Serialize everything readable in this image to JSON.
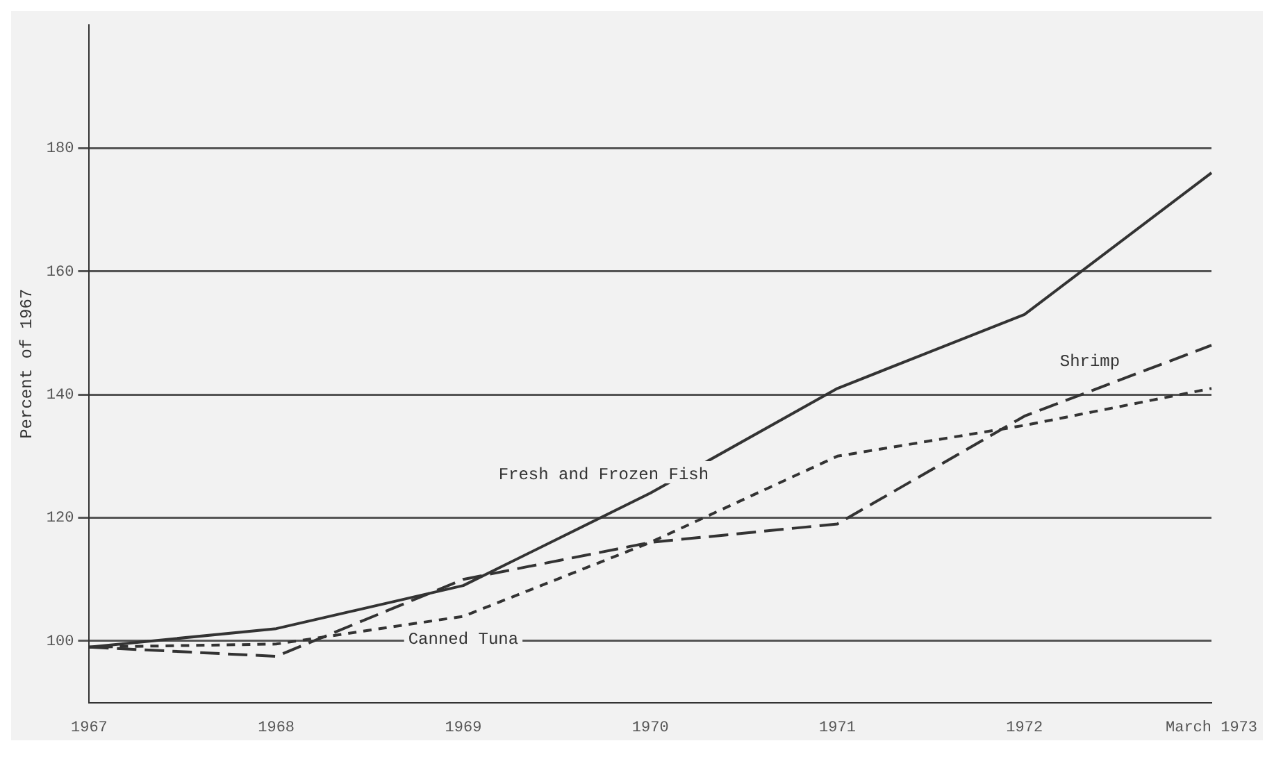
{
  "chart_data": {
    "type": "line",
    "ylabel": "Percent of 1967",
    "categories": [
      "1967",
      "1968",
      "1969",
      "1970",
      "1971",
      "1972",
      "March 1973"
    ],
    "series": [
      {
        "name": "Fresh and Frozen Fish",
        "color": "#333333",
        "line_style": "solid",
        "values": [
          99,
          102,
          109,
          124,
          141,
          153,
          176
        ]
      },
      {
        "name": "Shrimp",
        "color": "#333333",
        "line_style": "dashed",
        "values": [
          99,
          97.5,
          110,
          116,
          119,
          136.5,
          148
        ]
      },
      {
        "name": "Canned Tuna",
        "color": "#333333",
        "line_style": "dotted",
        "values": [
          99,
          99.5,
          104,
          116,
          130,
          135,
          141
        ]
      }
    ],
    "ylim": [
      90,
      200
    ],
    "yticks": [
      100,
      120,
      140,
      160,
      180
    ],
    "grid": "y",
    "legend": false,
    "marker": "none"
  }
}
